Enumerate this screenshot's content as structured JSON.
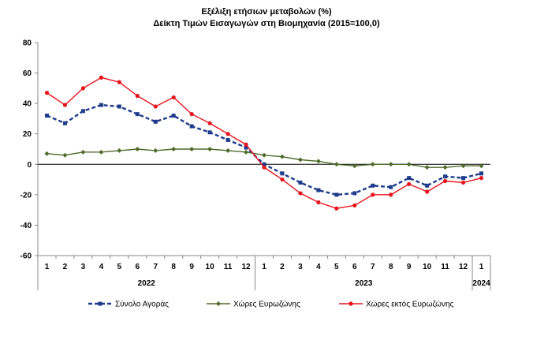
{
  "chart_data": {
    "type": "line",
    "title": "Εξέλιξη ετήσιων μεταβολών (%)",
    "subtitle": "Δείκτη Τιμών Εισαγωγών στη Βιομηχανία (2015=100,0)",
    "ylim": [
      -60,
      80
    ],
    "yticks": [
      80,
      60,
      40,
      20,
      0,
      -20,
      -40,
      -60
    ],
    "categories": [
      "1",
      "2",
      "3",
      "4",
      "5",
      "6",
      "7",
      "8",
      "9",
      "10",
      "11",
      "12",
      "1",
      "2",
      "3",
      "4",
      "5",
      "6",
      "7",
      "8",
      "9",
      "10",
      "11",
      "12",
      "1"
    ],
    "year_groups": [
      {
        "label": "2022",
        "start": 0,
        "end": 11
      },
      {
        "label": "2023",
        "start": 12,
        "end": 23
      },
      {
        "label": "2024",
        "start": 24,
        "end": 24
      }
    ],
    "grid": false,
    "legend_position": "bottom",
    "series": [
      {
        "name": "Σύνολο Αγοράς",
        "color": "#1f3b8c",
        "style": "dashed-square",
        "values": [
          32,
          27,
          35,
          39,
          38,
          33,
          28,
          32,
          25,
          21,
          16,
          11,
          0,
          -6,
          -12,
          -17,
          -20,
          -19,
          -14,
          -15,
          -9,
          -14,
          -8,
          -9,
          -6
        ]
      },
      {
        "name": "Χώρες Ευρωζώνης",
        "color": "#4f6b2a",
        "style": "solid-diamond",
        "values": [
          7,
          6,
          8,
          8,
          9,
          10,
          9,
          10,
          10,
          10,
          9,
          8,
          6,
          5,
          3,
          2,
          0,
          -1,
          0,
          0,
          0,
          -2,
          -2,
          -1,
          -1
        ]
      },
      {
        "name": "Χώρες εκτός Ευρωζώνης",
        "color": "#e8141c",
        "style": "solid-circle",
        "values": [
          47,
          39,
          50,
          57,
          54,
          45,
          38,
          44,
          33,
          27,
          20,
          13,
          -2,
          -10,
          -19,
          -25,
          -29,
          -27,
          -20,
          -20,
          -13,
          -18,
          -11,
          -12,
          -9
        ]
      }
    ]
  }
}
